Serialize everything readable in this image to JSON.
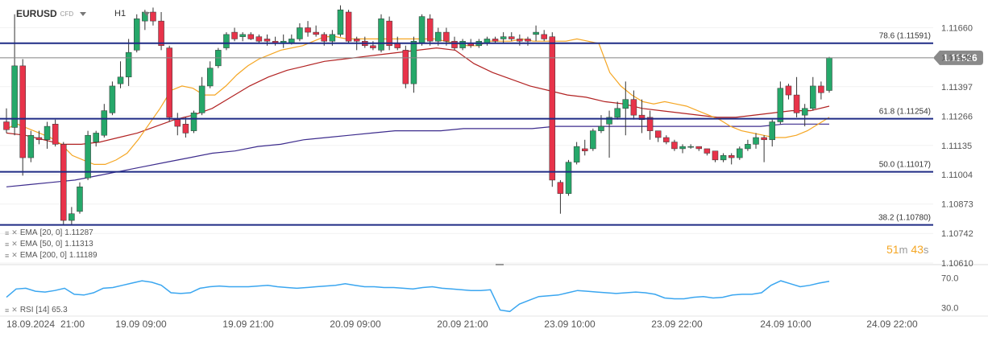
{
  "header": {
    "symbol": "EURUSD",
    "instrument_type": "CFD",
    "timeframe": "H1"
  },
  "colors": {
    "bull": "#26a86a",
    "bear": "#e8334a",
    "ema20": "#f5a623",
    "ema50": "#b22222",
    "ema200": "#3d2c8d",
    "fib_line": "#1f2b85",
    "price_line": "#888888",
    "rsi": "#3aa6f0",
    "price_badge": "#8a8a8a"
  },
  "indicators": [
    {
      "icon": "list-icon",
      "close": "close-icon",
      "label": "EMA",
      "params": "[20, 0]",
      "value": "1.11287"
    },
    {
      "icon": "list-icon",
      "close": "close-icon",
      "label": "EMA",
      "params": "[50, 0]",
      "value": "1.11313"
    },
    {
      "icon": "list-icon",
      "close": "close-icon",
      "label": "EMA",
      "params": "[200, 0]",
      "value": "1.11189"
    }
  ],
  "rsi_legend": {
    "label": "RSI",
    "params": "[14]",
    "value": "65.3"
  },
  "countdown": {
    "minutes": "51",
    "m": "m",
    "seconds": "43",
    "s": "s"
  },
  "chart_data": {
    "type": "candlestick",
    "y_ticks": [
      "1.11660",
      "1.11528",
      "1.11397",
      "1.11266",
      "1.11135",
      "1.11004",
      "1.10873",
      "1.10742",
      "1.10610"
    ],
    "y_range": [
      1.1061,
      1.1173
    ],
    "current_price": {
      "value": 1.11526,
      "label": "1.11526"
    },
    "fib_levels": [
      {
        "label": "78.6 (1.11591)",
        "value": 1.11591
      },
      {
        "label": "61.8 (1.11254)",
        "value": 1.11254
      },
      {
        "label": "50.0 (1.11017)",
        "value": 1.11017
      },
      {
        "label": "38.2 (1.10780)",
        "value": 1.1078
      }
    ],
    "x_labels": [
      "18.09.2024",
      "21:00",
      "19.09 09:00",
      "19.09 21:00",
      "20.09 09:00",
      "20.09 21:00",
      "23.09 10:00",
      "23.09 22:00",
      "24.09 10:00",
      "24.09 22:00"
    ],
    "candles": [
      {
        "o": 1.1124,
        "h": 1.113,
        "l": 1.1119,
        "c": 1.11205
      },
      {
        "o": 1.11215,
        "h": 1.1172,
        "l": 1.1118,
        "c": 1.1149
      },
      {
        "o": 1.1149,
        "h": 1.1152,
        "l": 1.11,
        "c": 1.1108
      },
      {
        "o": 1.1108,
        "h": 1.112,
        "l": 1.1106,
        "c": 1.1118
      },
      {
        "o": 1.1117,
        "h": 1.112,
        "l": 1.1114,
        "c": 1.1116
      },
      {
        "o": 1.1116,
        "h": 1.1124,
        "l": 1.1112,
        "c": 1.1122
      },
      {
        "o": 1.1123,
        "h": 1.1125,
        "l": 1.1113,
        "c": 1.1114
      },
      {
        "o": 1.1114,
        "h": 1.1115,
        "l": 1.1078,
        "c": 1.108
      },
      {
        "o": 1.108,
        "h": 1.1086,
        "l": 1.1078,
        "c": 1.1083
      },
      {
        "o": 1.1084,
        "h": 1.1097,
        "l": 1.1083,
        "c": 1.1095
      },
      {
        "o": 1.1099,
        "h": 1.112,
        "l": 1.1098,
        "c": 1.1118
      },
      {
        "o": 1.1115,
        "h": 1.112,
        "l": 1.1113,
        "c": 1.1119
      },
      {
        "o": 1.1118,
        "h": 1.1132,
        "l": 1.1117,
        "c": 1.1129
      },
      {
        "o": 1.1128,
        "h": 1.1142,
        "l": 1.1127,
        "c": 1.114
      },
      {
        "o": 1.1141,
        "h": 1.1151,
        "l": 1.1139,
        "c": 1.1144
      },
      {
        "o": 1.1144,
        "h": 1.1161,
        "l": 1.114,
        "c": 1.1155
      },
      {
        "o": 1.1156,
        "h": 1.1172,
        "l": 1.1155,
        "c": 1.117
      },
      {
        "o": 1.1169,
        "h": 1.1174,
        "l": 1.1165,
        "c": 1.1173
      },
      {
        "o": 1.1173,
        "h": 1.1175,
        "l": 1.1167,
        "c": 1.1169
      },
      {
        "o": 1.1169,
        "h": 1.1173,
        "l": 1.1156,
        "c": 1.1158
      },
      {
        "o": 1.1157,
        "h": 1.1158,
        "l": 1.1124,
        "c": 1.1126
      },
      {
        "o": 1.1125,
        "h": 1.1128,
        "l": 1.1118,
        "c": 1.1122
      },
      {
        "o": 1.1123,
        "h": 1.1126,
        "l": 1.1117,
        "c": 1.1119
      },
      {
        "o": 1.112,
        "h": 1.1129,
        "l": 1.1119,
        "c": 1.1128
      },
      {
        "o": 1.1128,
        "h": 1.1144,
        "l": 1.1127,
        "c": 1.114
      },
      {
        "o": 1.114,
        "h": 1.1151,
        "l": 1.1139,
        "c": 1.1148
      },
      {
        "o": 1.1149,
        "h": 1.1157,
        "l": 1.1148,
        "c": 1.1156
      },
      {
        "o": 1.1157,
        "h": 1.1164,
        "l": 1.1156,
        "c": 1.1163
      },
      {
        "o": 1.1164,
        "h": 1.1166,
        "l": 1.116,
        "c": 1.1161
      },
      {
        "o": 1.1162,
        "h": 1.1164,
        "l": 1.116,
        "c": 1.1163
      },
      {
        "o": 1.1163,
        "h": 1.1164,
        "l": 1.11605,
        "c": 1.1161
      },
      {
        "o": 1.1162,
        "h": 1.1163,
        "l": 1.1159,
        "c": 1.116
      },
      {
        "o": 1.1161,
        "h": 1.1163,
        "l": 1.1158,
        "c": 1.116
      },
      {
        "o": 1.116,
        "h": 1.1162,
        "l": 1.1158,
        "c": 1.1159
      },
      {
        "o": 1.1159,
        "h": 1.1163,
        "l": 1.1157,
        "c": 1.116
      },
      {
        "o": 1.1159,
        "h": 1.1163,
        "l": 1.11585,
        "c": 1.1161
      },
      {
        "o": 1.1161,
        "h": 1.1168,
        "l": 1.116,
        "c": 1.1166
      },
      {
        "o": 1.1166,
        "h": 1.1169,
        "l": 1.1162,
        "c": 1.1164
      },
      {
        "o": 1.1164,
        "h": 1.1167,
        "l": 1.1162,
        "c": 1.1163
      },
      {
        "o": 1.1163,
        "h": 1.1164,
        "l": 1.1158,
        "c": 1.116
      },
      {
        "o": 1.116,
        "h": 1.1165,
        "l": 1.1158,
        "c": 1.1163
      },
      {
        "o": 1.1163,
        "h": 1.1176,
        "l": 1.1162,
        "c": 1.1174
      },
      {
        "o": 1.1173,
        "h": 1.1174,
        "l": 1.1159,
        "c": 1.116
      },
      {
        "o": 1.1161,
        "h": 1.1162,
        "l": 1.1156,
        "c": 1.116
      },
      {
        "o": 1.116,
        "h": 1.1162,
        "l": 1.1157,
        "c": 1.1158
      },
      {
        "o": 1.1158,
        "h": 1.116,
        "l": 1.1156,
        "c": 1.1157
      },
      {
        "o": 1.1156,
        "h": 1.1172,
        "l": 1.1155,
        "c": 1.117
      },
      {
        "o": 1.1169,
        "h": 1.1171,
        "l": 1.1156,
        "c": 1.1158
      },
      {
        "o": 1.1159,
        "h": 1.1162,
        "l": 1.1156,
        "c": 1.1157
      },
      {
        "o": 1.1156,
        "h": 1.1158,
        "l": 1.1139,
        "c": 1.1141
      },
      {
        "o": 1.1141,
        "h": 1.1162,
        "l": 1.1137,
        "c": 1.116
      },
      {
        "o": 1.1159,
        "h": 1.1172,
        "l": 1.1158,
        "c": 1.1171
      },
      {
        "o": 1.117,
        "h": 1.1172,
        "l": 1.1158,
        "c": 1.116
      },
      {
        "o": 1.116,
        "h": 1.1166,
        "l": 1.1158,
        "c": 1.1164
      },
      {
        "o": 1.1164,
        "h": 1.1166,
        "l": 1.1158,
        "c": 1.116
      },
      {
        "o": 1.116,
        "h": 1.1162,
        "l": 1.1156,
        "c": 1.1157
      },
      {
        "o": 1.1157,
        "h": 1.1161,
        "l": 1.1156,
        "c": 1.116
      },
      {
        "o": 1.1159,
        "h": 1.1161,
        "l": 1.1157,
        "c": 1.1158
      },
      {
        "o": 1.1158,
        "h": 1.1161,
        "l": 1.1157,
        "c": 1.116
      },
      {
        "o": 1.1159,
        "h": 1.1162,
        "l": 1.1158,
        "c": 1.1161
      },
      {
        "o": 1.1161,
        "h": 1.1162,
        "l": 1.1159,
        "c": 1.116
      },
      {
        "o": 1.1161,
        "h": 1.1164,
        "l": 1.1159,
        "c": 1.1162
      },
      {
        "o": 1.1162,
        "h": 1.1164,
        "l": 1.116,
        "c": 1.1161
      },
      {
        "o": 1.1161,
        "h": 1.1163,
        "l": 1.1158,
        "c": 1.116
      },
      {
        "o": 1.1161,
        "h": 1.1162,
        "l": 1.1158,
        "c": 1.116
      },
      {
        "o": 1.1163,
        "h": 1.1167,
        "l": 1.116,
        "c": 1.1164
      },
      {
        "o": 1.1163,
        "h": 1.1165,
        "l": 1.116,
        "c": 1.1161
      },
      {
        "o": 1.1162,
        "h": 1.1164,
        "l": 1.1095,
        "c": 1.1098
      },
      {
        "o": 1.1097,
        "h": 1.1098,
        "l": 1.1083,
        "c": 1.1092
      },
      {
        "o": 1.1092,
        "h": 1.1107,
        "l": 1.1091,
        "c": 1.1106
      },
      {
        "o": 1.1106,
        "h": 1.1115,
        "l": 1.1105,
        "c": 1.1113
      },
      {
        "o": 1.1112,
        "h": 1.1116,
        "l": 1.1109,
        "c": 1.1111
      },
      {
        "o": 1.1112,
        "h": 1.1121,
        "l": 1.1111,
        "c": 1.112
      },
      {
        "o": 1.112,
        "h": 1.1127,
        "l": 1.1119,
        "c": 1.1122
      },
      {
        "o": 1.1123,
        "h": 1.1129,
        "l": 1.1108,
        "c": 1.1126
      },
      {
        "o": 1.1126,
        "h": 1.1133,
        "l": 1.1125,
        "c": 1.113
      },
      {
        "o": 1.113,
        "h": 1.1142,
        "l": 1.1118,
        "c": 1.1134
      },
      {
        "o": 1.1134,
        "h": 1.1138,
        "l": 1.1125,
        "c": 1.1127
      },
      {
        "o": 1.1127,
        "h": 1.1134,
        "l": 1.1119,
        "c": 1.1125
      },
      {
        "o": 1.1126,
        "h": 1.1129,
        "l": 1.1116,
        "c": 1.112
      },
      {
        "o": 1.112,
        "h": 1.112,
        "l": 1.1115,
        "c": 1.1117
      },
      {
        "o": 1.1117,
        "h": 1.1118,
        "l": 1.1114,
        "c": 1.1115
      },
      {
        "o": 1.1115,
        "h": 1.1116,
        "l": 1.1111,
        "c": 1.1112
      },
      {
        "o": 1.1112,
        "h": 1.1114,
        "l": 1.111,
        "c": 1.1113
      },
      {
        "o": 1.1113,
        "h": 1.1114,
        "l": 1.1112,
        "c": 1.1113
      },
      {
        "o": 1.1113,
        "h": 1.1113,
        "l": 1.1111,
        "c": 1.1112
      },
      {
        "o": 1.1112,
        "h": 1.1112,
        "l": 1.1109,
        "c": 1.111
      },
      {
        "o": 1.1111,
        "h": 1.1111,
        "l": 1.1106,
        "c": 1.1107
      },
      {
        "o": 1.1107,
        "h": 1.111,
        "l": 1.1106,
        "c": 1.1109
      },
      {
        "o": 1.1109,
        "h": 1.111,
        "l": 1.1105,
        "c": 1.1108
      },
      {
        "o": 1.1108,
        "h": 1.1113,
        "l": 1.1107,
        "c": 1.1112
      },
      {
        "o": 1.1112,
        "h": 1.1116,
        "l": 1.1111,
        "c": 1.1114
      },
      {
        "o": 1.1114,
        "h": 1.1119,
        "l": 1.1112,
        "c": 1.1117
      },
      {
        "o": 1.1117,
        "h": 1.1118,
        "l": 1.1106,
        "c": 1.1116
      },
      {
        "o": 1.1116,
        "h": 1.1125,
        "l": 1.1113,
        "c": 1.1124
      },
      {
        "o": 1.1124,
        "h": 1.1142,
        "l": 1.1123,
        "c": 1.1139
      },
      {
        "o": 1.114,
        "h": 1.1141,
        "l": 1.1134,
        "c": 1.1136
      },
      {
        "o": 1.1136,
        "h": 1.1144,
        "l": 1.1126,
        "c": 1.1128
      },
      {
        "o": 1.1127,
        "h": 1.1132,
        "l": 1.1122,
        "c": 1.113
      },
      {
        "o": 1.113,
        "h": 1.1144,
        "l": 1.1129,
        "c": 1.114
      },
      {
        "o": 1.114,
        "h": 1.1142,
        "l": 1.1134,
        "c": 1.1137
      },
      {
        "o": 1.1138,
        "h": 1.1153,
        "l": 1.1137,
        "c": 1.11526
      }
    ],
    "ema20": [
      1.1121,
      1.1123,
      1.1121,
      1.1119,
      1.1117,
      1.1114,
      1.1109,
      1.1107,
      1.1105,
      1.1105,
      1.1107,
      1.111,
      1.1116,
      1.1123,
      1.113,
      1.1138,
      1.114,
      1.1139,
      1.1136,
      1.1136,
      1.114,
      1.1145,
      1.1149,
      1.1152,
      1.1154,
      1.1156,
      1.1157,
      1.1158,
      1.116,
      1.1162,
      1.1162,
      1.1161,
      1.1161,
      1.1161,
      1.1161,
      1.1161,
      1.1161,
      1.1161,
      1.1161,
      1.1161,
      1.116,
      1.1159,
      1.1158,
      1.1158,
      1.116,
      1.116,
      1.116,
      1.1161,
      1.116,
      1.116,
      1.116,
      1.116,
      1.1161,
      1.116,
      1.1159,
      1.1146,
      1.114,
      1.1136,
      1.1133,
      1.1132,
      1.1133,
      1.1132,
      1.1131,
      1.1129,
      1.1127,
      1.1125,
      1.1122,
      1.112,
      1.1119,
      1.1118,
      1.1117,
      1.1117,
      1.1118,
      1.112,
      1.1123,
      1.1126
    ],
    "ema50": [
      1.1119,
      1.1118,
      1.1116,
      1.1114,
      1.1114,
      1.1115,
      1.1117,
      1.1119,
      1.1122,
      1.1125,
      1.1127,
      1.113,
      1.1135,
      1.114,
      1.1144,
      1.1147,
      1.1149,
      1.1151,
      1.1152,
      1.1153,
      1.1154,
      1.1155,
      1.1156,
      1.1157,
      1.1156,
      1.115,
      1.1146,
      1.1143,
      1.114,
      1.1138,
      1.1136,
      1.1135,
      1.1133,
      1.1132,
      1.113,
      1.1129,
      1.1128,
      1.1127,
      1.1126,
      1.1126,
      1.1127,
      1.1128,
      1.1129,
      1.1129,
      1.1131
    ],
    "ema200": [
      1.1095,
      1.1096,
      1.1097,
      1.1098,
      1.11,
      1.1102,
      1.1104,
      1.1106,
      1.1108,
      1.111,
      1.1111,
      1.1113,
      1.1114,
      1.1116,
      1.1117,
      1.1118,
      1.1119,
      1.112,
      1.112,
      1.112,
      1.1121,
      1.1121,
      1.1121,
      1.1121,
      1.1122,
      1.1122,
      1.1122,
      1.1122,
      1.1122,
      1.1122,
      1.1122,
      1.1122,
      1.1122,
      1.1122,
      1.1123,
      1.1123,
      1.1123
    ],
    "rsi": {
      "y_ticks": [
        "70.0",
        "30.0"
      ],
      "y_range": [
        20,
        80
      ],
      "values": [
        44,
        55,
        56,
        52,
        51,
        53,
        56,
        48,
        47,
        50,
        56,
        57,
        60,
        63,
        66,
        64,
        60,
        50,
        49,
        50,
        56,
        58,
        59,
        58,
        58,
        58,
        59,
        60,
        58,
        57,
        56,
        57,
        58,
        59,
        60,
        62,
        60,
        58,
        58,
        57,
        57,
        56,
        55,
        57,
        58,
        56,
        55,
        54,
        53,
        53,
        54,
        27,
        25,
        35,
        40,
        45,
        46,
        47,
        50,
        53,
        52,
        51,
        50,
        49,
        50,
        51,
        50,
        48,
        43,
        42,
        42,
        44,
        45,
        43,
        44,
        47,
        48,
        48,
        50,
        60,
        66,
        62,
        58,
        60,
        63,
        65.3
      ]
    }
  }
}
